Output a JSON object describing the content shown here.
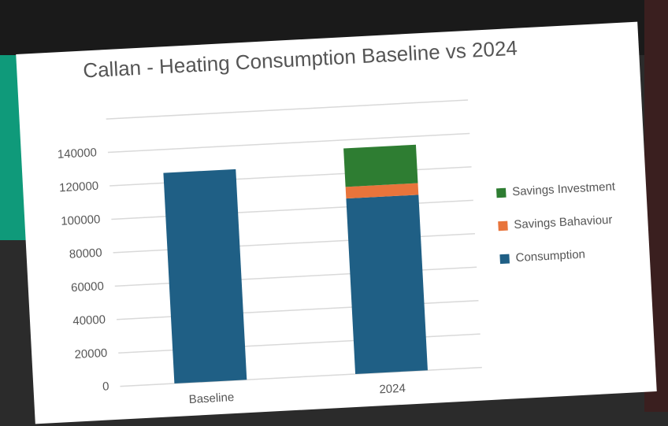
{
  "chart_data": {
    "type": "stacked_bar",
    "title": "Callan - Heating Consumption Baseline vs 2024",
    "categories": [
      "Baseline",
      "2024"
    ],
    "series": [
      {
        "name": "Consumption",
        "color": "#1f5f85",
        "values": [
          126000,
          105000
        ]
      },
      {
        "name": "Savings Bahaviour",
        "color": "#e8743b",
        "values": [
          null,
          7000
        ]
      },
      {
        "name": "Savings Investment",
        "color": "#2e7d32",
        "values": [
          null,
          23000
        ]
      }
    ],
    "ylim": [
      0,
      160000
    ],
    "yticks": [
      0,
      20000,
      40000,
      60000,
      80000,
      100000,
      120000,
      140000
    ],
    "grid": true,
    "legend": "right"
  }
}
